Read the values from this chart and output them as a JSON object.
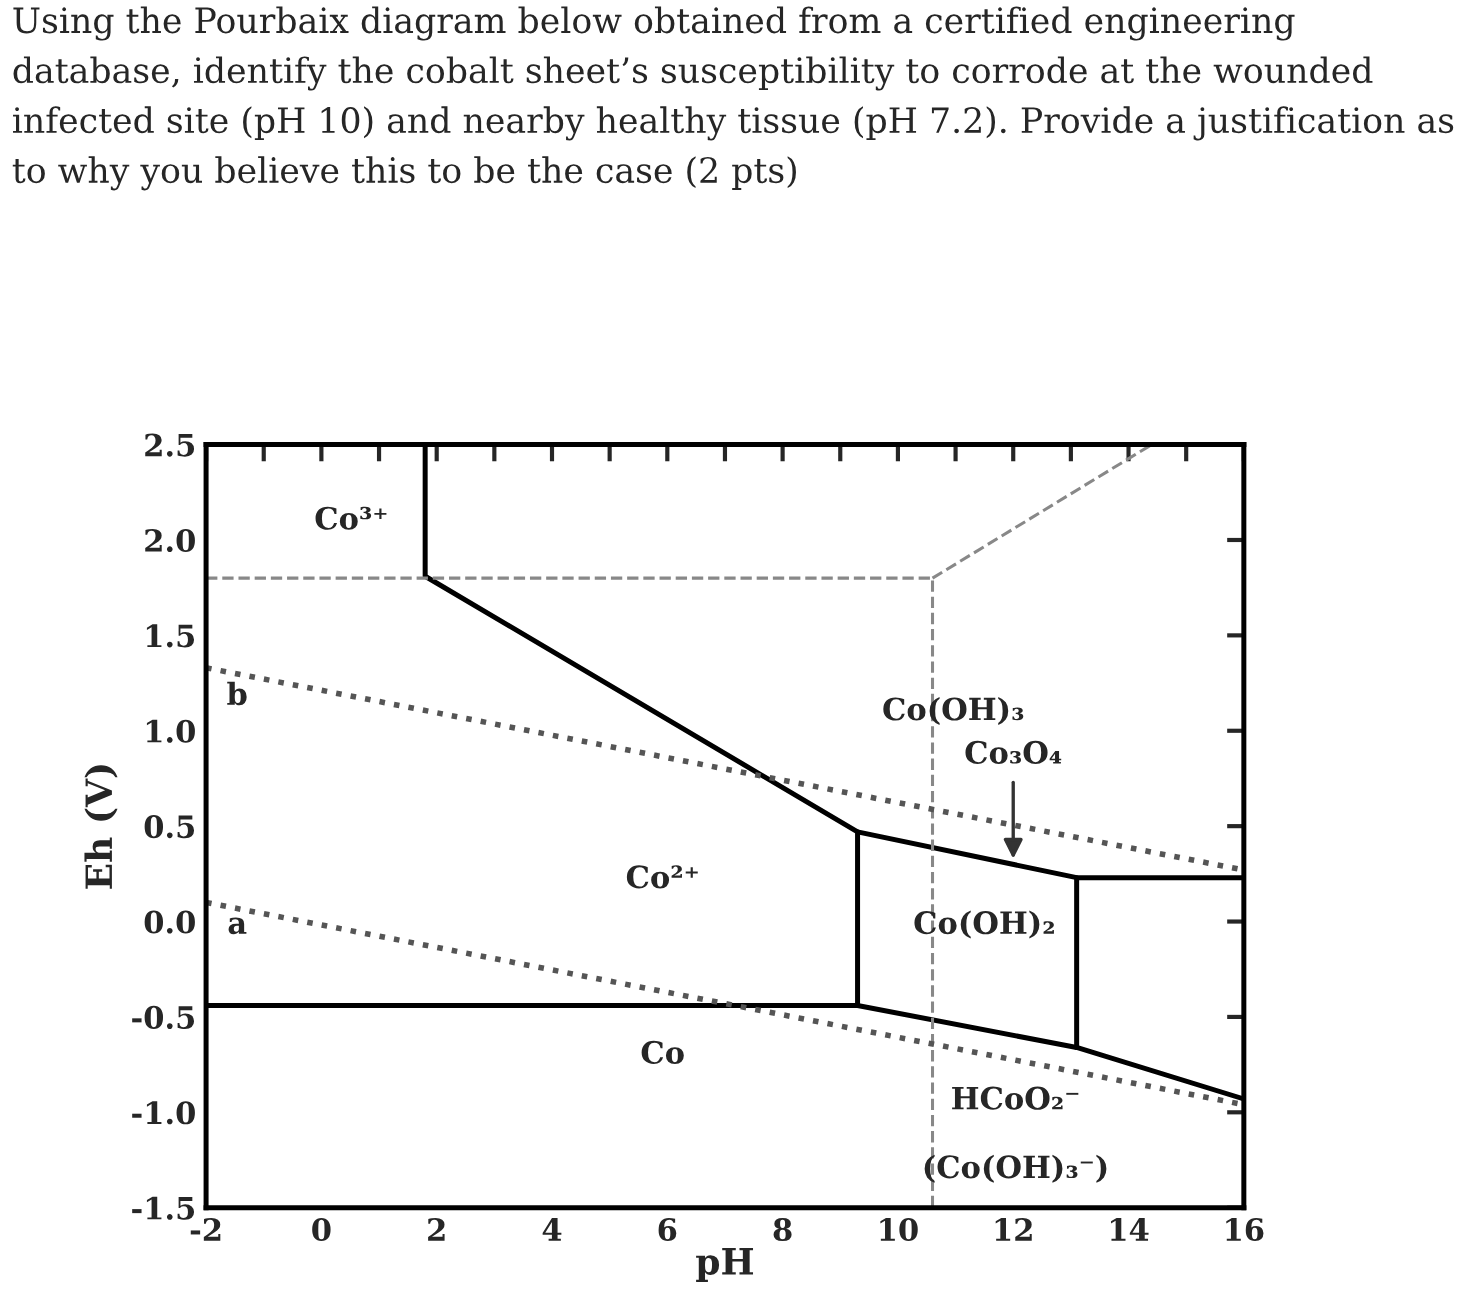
{
  "chart_data": {
    "type": "line",
    "title": "Using the Pourbaix diagram below obtained from a certified engineering database, identify the cobalt sheet’s susceptibility to corrode at the wounded infected site (pH 10) and nearby healthy tissue (pH 7.2). Provide a justification as to why you believe this to be the case (2 pts)",
    "xlabel": "pH",
    "ylabel": "Eh (V)",
    "xlim": [
      -2,
      16
    ],
    "ylim": [
      -1.5,
      2.5
    ],
    "xticks": [
      -2,
      {
        "value": -1,
        "label": null
      },
      0,
      {
        "value": 1,
        "label": null
      },
      2,
      {
        "value": 3,
        "label": null
      },
      4,
      {
        "value": 5,
        "label": null
      },
      6,
      {
        "value": 7,
        "label": null
      },
      8,
      {
        "value": 9,
        "label": null
      },
      10,
      {
        "value": 11,
        "label": null
      },
      12,
      {
        "value": 13,
        "label": null
      },
      14,
      {
        "value": 15,
        "label": null
      },
      16
    ],
    "yticks": [
      {
        "value": -1.5,
        "label": "-1.5"
      },
      {
        "value": -1,
        "label": "-1.0"
      },
      {
        "value": -0.5,
        "label": "-0.5"
      },
      {
        "value": 0,
        "label": "0.0"
      },
      {
        "value": 0.5,
        "label": "0.5"
      },
      {
        "value": 1,
        "label": "1.0"
      },
      {
        "value": 1.5,
        "label": "1.5"
      },
      {
        "value": 2,
        "label": "2.0"
      },
      {
        "value": 2.5,
        "label": "2.5"
      }
    ],
    "grid": false,
    "marker": "none",
    "series": [
      {
        "color": "#000000",
        "line_style": "solid",
        "x": [
          1.8,
          1.8,
          9.3,
          9.3,
          -2
        ],
        "values": [
          2.5,
          1.81,
          0.47,
          -0.44,
          -0.44
        ]
      },
      {
        "color": "#000000",
        "line_style": "solid",
        "x": [
          9.3,
          13.1,
          16
        ],
        "values": [
          0.47,
          0.23,
          0.23
        ]
      },
      {
        "color": "#000000",
        "line_style": "solid",
        "x": [
          13.1,
          13.1
        ],
        "values": [
          0.23,
          -0.66
        ]
      },
      {
        "color": "#000000",
        "line_style": "solid",
        "x": [
          9.3,
          13.1,
          16
        ],
        "values": [
          -0.44,
          -0.66,
          -0.93
        ]
      },
      {
        "color": "#888888",
        "line_style": "dashed",
        "x": [
          -2,
          10.6,
          10.6
        ],
        "values": [
          1.8,
          1.8,
          -1.5
        ]
      },
      {
        "color": "#888888",
        "line_style": "dashed",
        "x": [
          10.6,
          14.4
        ],
        "values": [
          1.8,
          2.5
        ]
      },
      {
        "color": "#555555",
        "line_style": "dotted",
        "x": [
          -2,
          16
        ],
        "values": [
          1.33,
          0.27
        ]
      },
      {
        "color": "#555555",
        "line_style": "dotted",
        "x": [
          -2,
          16
        ],
        "values": [
          0.1,
          -0.96
        ]
      }
    ],
    "annotations": [
      "Co³⁺",
      "b",
      "Co(OH)₃",
      {
        "text": "Co₃O₄",
        "x": 12.0,
        "y": 0.3
      },
      "Co²⁺",
      "a",
      "Co(OH)₂",
      "Co",
      "HCoO₂⁻",
      "(Co(OH)₃⁻)"
    ]
  }
}
